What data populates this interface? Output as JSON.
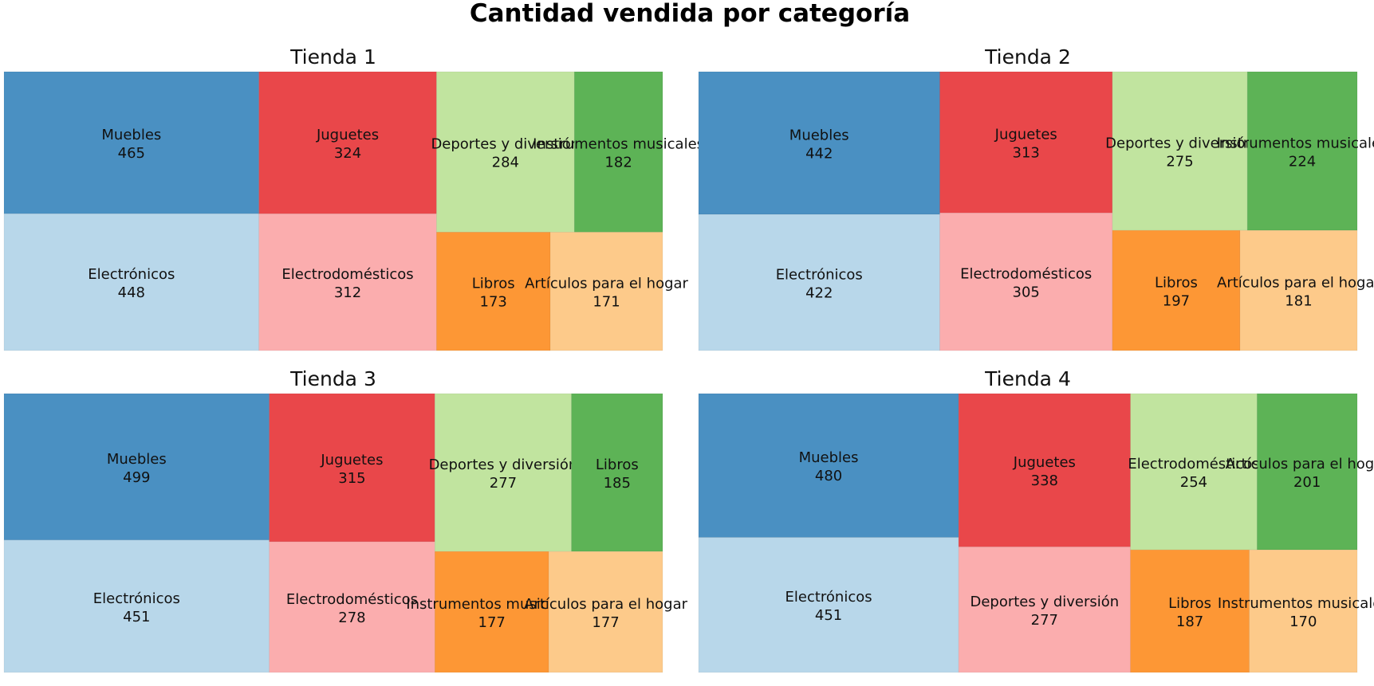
{
  "chart_data": {
    "type": "treemap",
    "title": "Cantidad vendida por categoría",
    "palette": [
      "#4a90c2",
      "#b8d7ea",
      "#e9474a",
      "#fbadae",
      "#c1e49f",
      "#5db356",
      "#fd9735",
      "#fdca8a"
    ],
    "panels": [
      {
        "title": "Tienda 1",
        "items": [
          {
            "name": "Muebles",
            "value": 465
          },
          {
            "name": "Electrónicos",
            "value": 448
          },
          {
            "name": "Juguetes",
            "value": 324
          },
          {
            "name": "Electrodomésticos",
            "value": 312
          },
          {
            "name": "Deportes y diversión",
            "value": 284
          },
          {
            "name": "Instrumentos musicales",
            "value": 182
          },
          {
            "name": "Libros",
            "value": 173
          },
          {
            "name": "Artículos para el hogar",
            "value": 171
          }
        ]
      },
      {
        "title": "Tienda 2",
        "items": [
          {
            "name": "Muebles",
            "value": 442
          },
          {
            "name": "Electrónicos",
            "value": 422
          },
          {
            "name": "Juguetes",
            "value": 313
          },
          {
            "name": "Electrodomésticos",
            "value": 305
          },
          {
            "name": "Deportes y diversión",
            "value": 275
          },
          {
            "name": "Instrumentos musicales",
            "value": 224
          },
          {
            "name": "Libros",
            "value": 197
          },
          {
            "name": "Artículos para el hogar",
            "value": 181
          }
        ]
      },
      {
        "title": "Tienda 3",
        "items": [
          {
            "name": "Muebles",
            "value": 499
          },
          {
            "name": "Electrónicos",
            "value": 451
          },
          {
            "name": "Juguetes",
            "value": 315
          },
          {
            "name": "Electrodomésticos",
            "value": 278
          },
          {
            "name": "Deportes y diversión",
            "value": 277
          },
          {
            "name": "Libros",
            "value": 185
          },
          {
            "name": "Instrumentos musicales",
            "value": 177
          },
          {
            "name": "Artículos para el hogar",
            "value": 177
          }
        ]
      },
      {
        "title": "Tienda 4",
        "items": [
          {
            "name": "Muebles",
            "value": 480
          },
          {
            "name": "Electrónicos",
            "value": 451
          },
          {
            "name": "Juguetes",
            "value": 338
          },
          {
            "name": "Deportes y diversión",
            "value": 277
          },
          {
            "name": "Electrodomésticos",
            "value": 254
          },
          {
            "name": "Artículos para el hogar",
            "value": 201
          },
          {
            "name": "Libros",
            "value": 187
          },
          {
            "name": "Instrumentos musicales",
            "value": 170
          }
        ]
      }
    ]
  }
}
